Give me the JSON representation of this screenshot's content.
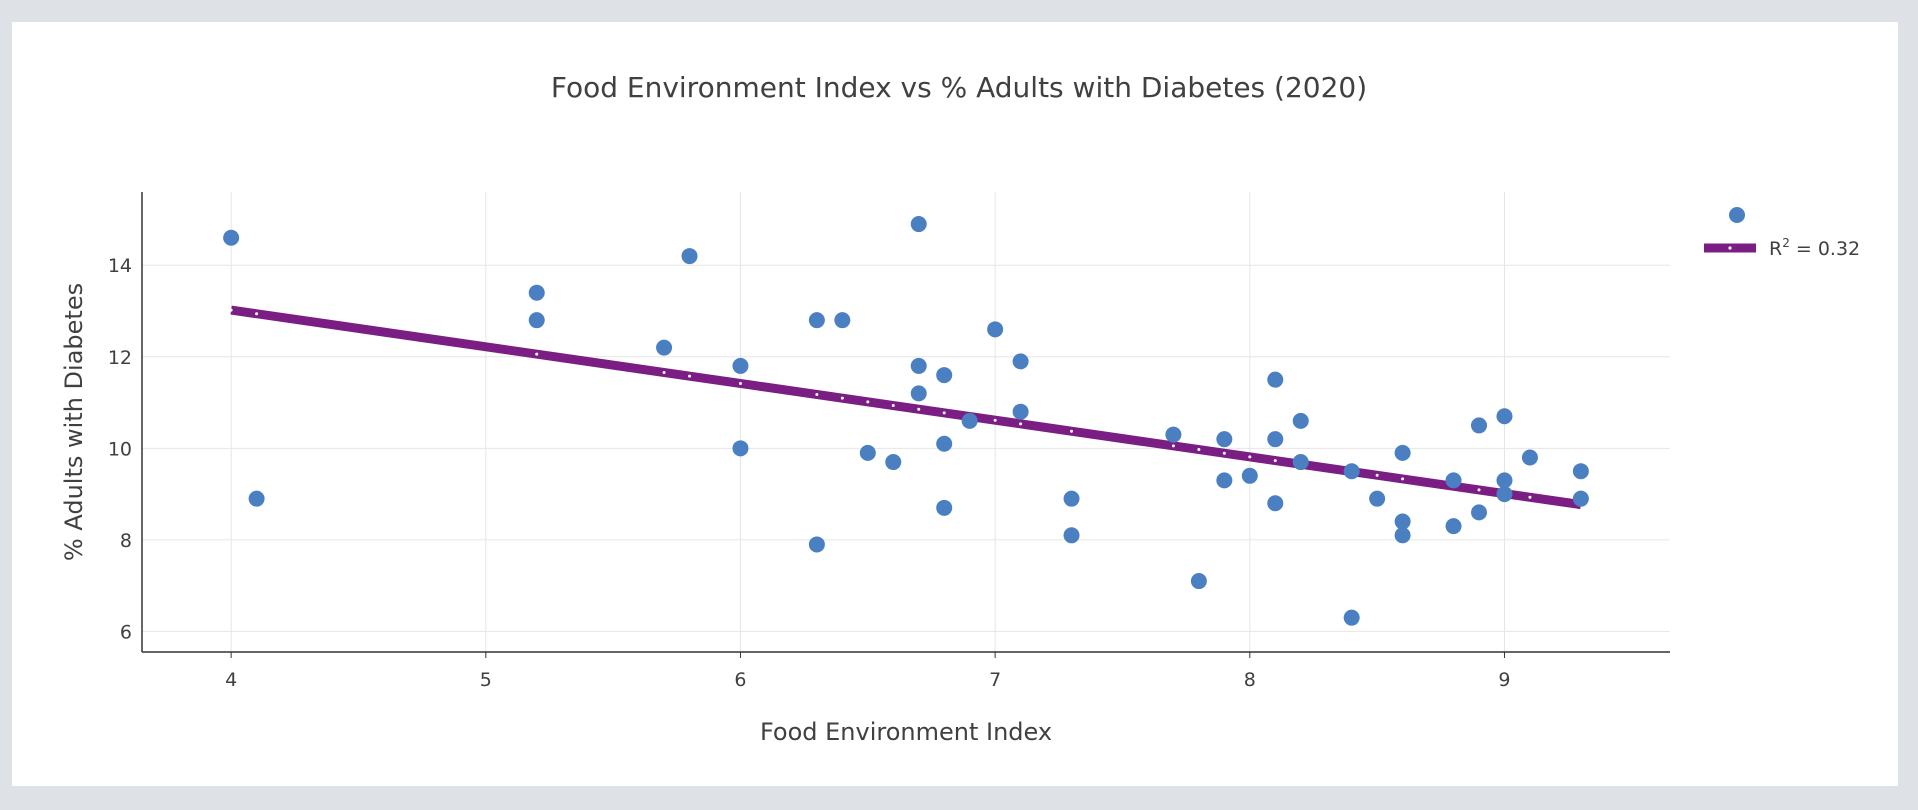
{
  "chart_data": {
    "type": "scatter",
    "title": "Food Environment Index vs % Adults with Diabetes (2020)",
    "xlabel": "Food Environment Index",
    "ylabel": "% Adults with Diabetes",
    "xlim": [
      3.65,
      9.65
    ],
    "ylim": [
      5.55,
      15.6
    ],
    "xticks": [
      4,
      5,
      6,
      7,
      8,
      9
    ],
    "yticks": [
      6,
      8,
      10,
      12,
      14
    ],
    "grid": true,
    "legend_position": "top-right",
    "colors": {
      "points": "#4a7fc1",
      "trend": "#7b1e83"
    },
    "series": [
      {
        "type": "scatter",
        "x": [
          4.0,
          4.1,
          5.2,
          5.2,
          5.7,
          5.8,
          6.0,
          6.0,
          6.3,
          6.3,
          6.4,
          6.5,
          6.6,
          6.7,
          6.7,
          6.7,
          6.8,
          6.8,
          6.8,
          6.9,
          7.0,
          7.1,
          7.1,
          7.3,
          7.3,
          7.7,
          7.8,
          7.9,
          7.9,
          8.0,
          8.1,
          8.1,
          8.1,
          8.2,
          8.2,
          8.4,
          8.4,
          8.5,
          8.6,
          8.6,
          8.6,
          8.8,
          8.8,
          8.9,
          8.9,
          9.0,
          9.0,
          9.0,
          9.1,
          9.3,
          9.3
        ],
        "y": [
          14.6,
          8.9,
          13.4,
          12.8,
          12.2,
          14.2,
          11.8,
          10.0,
          12.8,
          7.9,
          12.8,
          9.9,
          9.7,
          14.9,
          11.8,
          11.2,
          11.6,
          10.1,
          8.7,
          10.6,
          12.6,
          11.9,
          10.8,
          8.9,
          8.1,
          10.3,
          7.1,
          10.2,
          9.3,
          9.4,
          11.5,
          10.2,
          8.8,
          10.6,
          9.7,
          9.5,
          6.3,
          8.9,
          9.9,
          8.4,
          8.1,
          9.3,
          8.3,
          10.5,
          8.6,
          10.7,
          9.3,
          9.0,
          9.8,
          9.5,
          8.9
        ]
      },
      {
        "type": "line",
        "name": "R² = 0.32",
        "legend_base": "R",
        "legend_sup": "2",
        "legend_rest": " = 0.32",
        "x": [
          4.0,
          9.3
        ],
        "y": [
          13.02,
          8.77
        ]
      }
    ]
  }
}
